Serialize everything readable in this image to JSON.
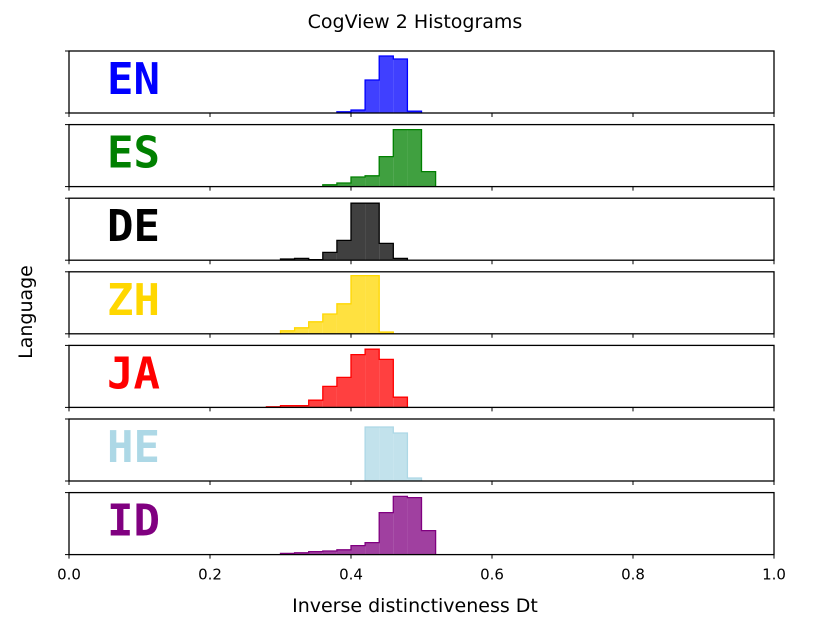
{
  "chart_data": {
    "type": "histogram",
    "title": "CogView 2 Histograms",
    "xlabel": "Inverse distinctiveness Dt",
    "ylabel": "Language",
    "xlim": [
      0.0,
      1.0
    ],
    "xticks": [
      "0.0",
      "0.2",
      "0.4",
      "0.6",
      "0.8",
      "1.0"
    ],
    "bin_width": 0.02,
    "series": [
      {
        "name": "EN",
        "color": "#0000ff",
        "bins": [
          [
            0.38,
            0.4,
            0.02
          ],
          [
            0.4,
            0.42,
            0.05
          ],
          [
            0.42,
            0.44,
            0.55
          ],
          [
            0.44,
            0.46,
            0.95
          ],
          [
            0.46,
            0.48,
            0.9
          ],
          [
            0.48,
            0.5,
            0.03
          ]
        ]
      },
      {
        "name": "ES",
        "color": "#008000",
        "bins": [
          [
            0.36,
            0.38,
            0.03
          ],
          [
            0.38,
            0.4,
            0.06
          ],
          [
            0.4,
            0.42,
            0.16
          ],
          [
            0.42,
            0.44,
            0.18
          ],
          [
            0.44,
            0.46,
            0.5
          ],
          [
            0.46,
            0.48,
            0.95
          ],
          [
            0.48,
            0.5,
            0.95
          ],
          [
            0.5,
            0.52,
            0.25
          ]
        ]
      },
      {
        "name": "DE",
        "color": "#000000",
        "bins": [
          [
            0.3,
            0.32,
            0.02
          ],
          [
            0.32,
            0.34,
            0.03
          ],
          [
            0.34,
            0.36,
            0.01
          ],
          [
            0.36,
            0.38,
            0.13
          ],
          [
            0.38,
            0.4,
            0.33
          ],
          [
            0.4,
            0.42,
            0.95
          ],
          [
            0.42,
            0.44,
            0.95
          ],
          [
            0.44,
            0.46,
            0.28
          ],
          [
            0.46,
            0.48,
            0.03
          ]
        ]
      },
      {
        "name": "ZH",
        "color": "#ffd700",
        "bins": [
          [
            0.3,
            0.32,
            0.05
          ],
          [
            0.32,
            0.34,
            0.1
          ],
          [
            0.34,
            0.36,
            0.2
          ],
          [
            0.36,
            0.38,
            0.33
          ],
          [
            0.38,
            0.4,
            0.5
          ],
          [
            0.4,
            0.42,
            0.97
          ],
          [
            0.42,
            0.44,
            0.97
          ],
          [
            0.44,
            0.46,
            0.03
          ]
        ]
      },
      {
        "name": "JA",
        "color": "#ff0000",
        "bins": [
          [
            0.28,
            0.3,
            0.01
          ],
          [
            0.3,
            0.32,
            0.03
          ],
          [
            0.32,
            0.34,
            0.03
          ],
          [
            0.34,
            0.36,
            0.12
          ],
          [
            0.36,
            0.38,
            0.35
          ],
          [
            0.38,
            0.4,
            0.5
          ],
          [
            0.4,
            0.42,
            0.88
          ],
          [
            0.42,
            0.44,
            0.97
          ],
          [
            0.44,
            0.46,
            0.8
          ],
          [
            0.46,
            0.48,
            0.17
          ]
        ]
      },
      {
        "name": "HE",
        "color": "#add8e6",
        "bins": [
          [
            0.42,
            0.44,
            0.9
          ],
          [
            0.44,
            0.46,
            0.9
          ],
          [
            0.46,
            0.48,
            0.8
          ],
          [
            0.48,
            0.5,
            0.05
          ]
        ]
      },
      {
        "name": "ID",
        "color": "#800080",
        "bins": [
          [
            0.3,
            0.32,
            0.02
          ],
          [
            0.32,
            0.34,
            0.03
          ],
          [
            0.34,
            0.36,
            0.05
          ],
          [
            0.36,
            0.38,
            0.06
          ],
          [
            0.38,
            0.4,
            0.08
          ],
          [
            0.4,
            0.42,
            0.15
          ],
          [
            0.42,
            0.44,
            0.2
          ],
          [
            0.44,
            0.46,
            0.7
          ],
          [
            0.46,
            0.48,
            0.97
          ],
          [
            0.48,
            0.5,
            0.95
          ],
          [
            0.5,
            0.52,
            0.4
          ]
        ]
      }
    ]
  }
}
